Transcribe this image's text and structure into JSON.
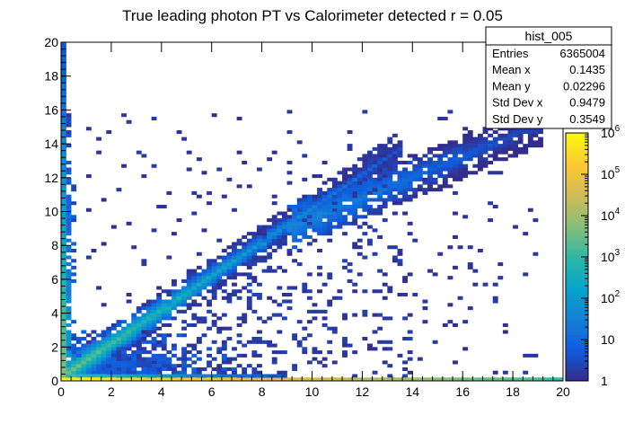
{
  "chart_data": {
    "type": "heatmap",
    "title": "True leading photon PT vs Calorimeter detected r = 0.05",
    "xlabel": "",
    "ylabel": "",
    "xlim": [
      0,
      20
    ],
    "ylim": [
      0,
      20
    ],
    "x_ticks": [
      "0",
      "2",
      "4",
      "6",
      "8",
      "10",
      "12",
      "14",
      "16",
      "18",
      "20"
    ],
    "y_ticks": [
      "0",
      "2",
      "4",
      "6",
      "8",
      "10",
      "12",
      "14",
      "16",
      "18",
      "20"
    ],
    "bins": {
      "nx": 100,
      "ny": 100
    },
    "z_scale": "log",
    "colorbar": {
      "labels": [
        "1",
        "10",
        "10",
        "10",
        "10",
        "10",
        "10"
      ],
      "exponents": [
        "",
        "",
        "2",
        "3",
        "4",
        "5",
        "6"
      ],
      "range": [
        1,
        1000000
      ]
    },
    "colormap": [
      "#352a87",
      "#0f5cdd",
      "#1481d6",
      "#06a4ca",
      "#2eb7a4",
      "#87bf77",
      "#d1bb59",
      "#fec832",
      "#f9fb0e"
    ],
    "features": {
      "diagonal_band": {
        "description": "x ≈ y",
        "from": [
          0,
          0
        ],
        "to": [
          12,
          12
        ]
      },
      "upper_band": {
        "from": [
          9,
          9
        ],
        "to": [
          19,
          15
        ]
      },
      "x0_column_density": "high",
      "y0_row_density": "high"
    },
    "stats_box": {
      "title": "hist_005",
      "rows": [
        {
          "label": "Entries",
          "value": "6365004"
        },
        {
          "label": "Mean x",
          "value": "0.1435"
        },
        {
          "label": "Mean y",
          "value": "0.02296"
        },
        {
          "label": "Std Dev x",
          "value": "0.9479"
        },
        {
          "label": "Std Dev y",
          "value": "0.3549"
        }
      ]
    }
  }
}
